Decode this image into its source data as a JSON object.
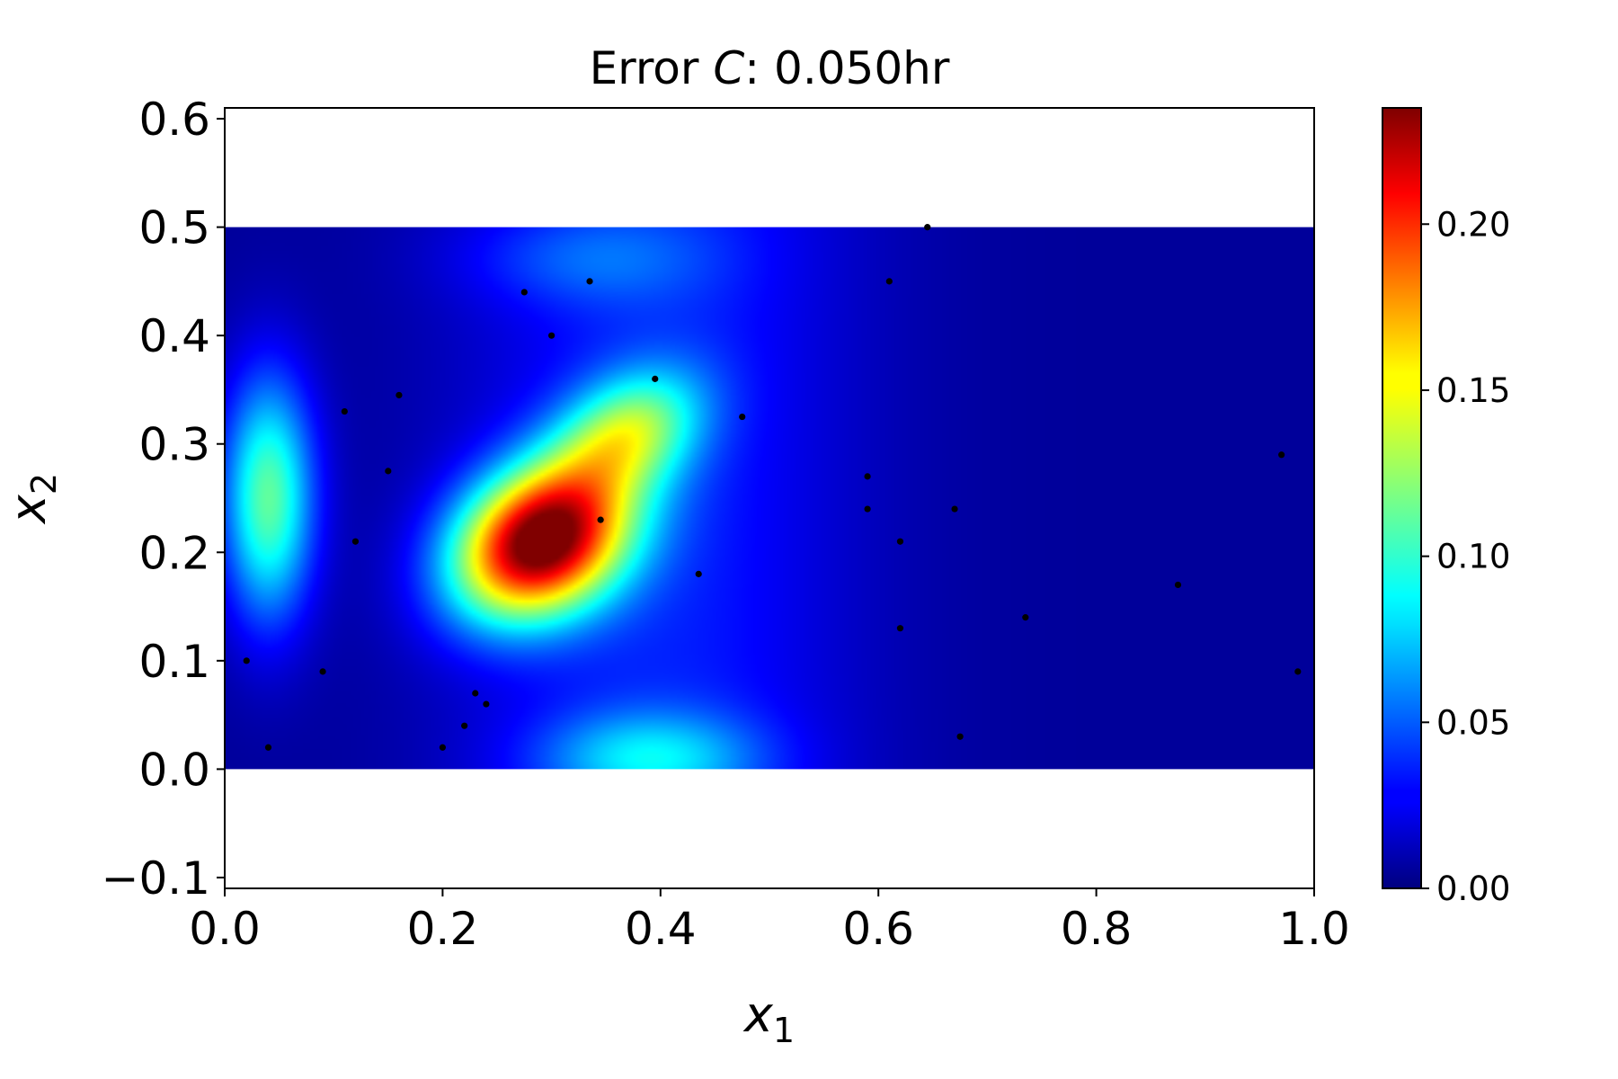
{
  "chart_data": {
    "type": "heatmap",
    "title_prefix": "Error ",
    "title_var": "C",
    "title_suffix": ": 0.050hr",
    "xlabel": "x",
    "xlabel_sub": "1",
    "ylabel": "x",
    "ylabel_sub": "2",
    "xlim": [
      0.0,
      1.0
    ],
    "ylim": [
      -0.11,
      0.61
    ],
    "xticks": [
      "0.0",
      "0.2",
      "0.4",
      "0.6",
      "0.8",
      "1.0"
    ],
    "xtick_values": [
      0.0,
      0.2,
      0.4,
      0.6,
      0.8,
      1.0
    ],
    "yticks": [
      "−0.1",
      "0.0",
      "0.1",
      "0.2",
      "0.3",
      "0.4",
      "0.5",
      "0.6"
    ],
    "ytick_values": [
      -0.1,
      0.0,
      0.1,
      0.2,
      0.3,
      0.4,
      0.5,
      0.6
    ],
    "field_extent": {
      "x": [
        0.0,
        1.0
      ],
      "y": [
        0.0,
        0.5
      ]
    },
    "colormap": "jet",
    "colorbar": {
      "range": [
        0.0,
        0.235
      ],
      "ticks": [
        "0.00",
        "0.05",
        "0.10",
        "0.15",
        "0.20"
      ],
      "tick_values": [
        0.0,
        0.05,
        0.1,
        0.15,
        0.2
      ]
    },
    "error_peaks": [
      {
        "x": 0.29,
        "y": 0.21,
        "value": 0.235
      },
      {
        "x": 0.37,
        "y": 0.31,
        "value": 0.1
      },
      {
        "x": 0.04,
        "y": 0.25,
        "value": 0.11
      },
      {
        "x": 0.39,
        "y": 0.01,
        "value": 0.06
      },
      {
        "x": 0.33,
        "y": 0.47,
        "value": 0.03
      }
    ],
    "sample_points": [
      [
        0.02,
        0.1
      ],
      [
        0.04,
        0.02
      ],
      [
        0.09,
        0.09
      ],
      [
        0.11,
        0.33
      ],
      [
        0.12,
        0.21
      ],
      [
        0.15,
        0.275
      ],
      [
        0.16,
        0.345
      ],
      [
        0.2,
        0.02
      ],
      [
        0.22,
        0.04
      ],
      [
        0.23,
        0.07
      ],
      [
        0.24,
        0.06
      ],
      [
        0.275,
        0.44
      ],
      [
        0.3,
        0.4
      ],
      [
        0.335,
        0.45
      ],
      [
        0.345,
        0.23
      ],
      [
        0.395,
        0.36
      ],
      [
        0.435,
        0.18
      ],
      [
        0.475,
        0.325
      ],
      [
        0.59,
        0.27
      ],
      [
        0.59,
        0.24
      ],
      [
        0.61,
        0.45
      ],
      [
        0.62,
        0.21
      ],
      [
        0.62,
        0.13
      ],
      [
        0.645,
        0.5
      ],
      [
        0.67,
        0.24
      ],
      [
        0.675,
        0.03
      ],
      [
        0.735,
        0.14
      ],
      [
        0.875,
        0.17
      ],
      [
        0.97,
        0.29
      ],
      [
        0.985,
        0.09
      ]
    ]
  }
}
